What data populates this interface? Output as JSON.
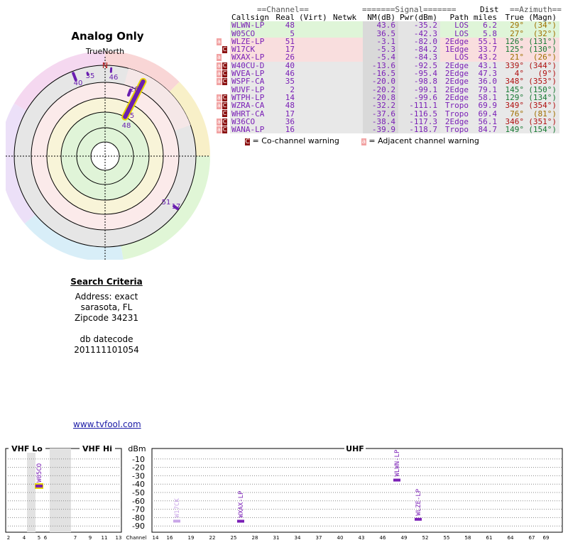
{
  "title": "Analog Only",
  "compass": {
    "true_north_label": "TrueNorth",
    "north_letter": "N",
    "labels": [
      "35",
      "46",
      "40",
      "26",
      "5",
      "48",
      "51",
      "17"
    ]
  },
  "table": {
    "group_headers": {
      "channel": "==Channel==",
      "signal": "=======Signal=======",
      "dist": "Dist",
      "azimuth": "==Azimuth=="
    },
    "headers": [
      "Callsign",
      "Real",
      "(Virt)",
      "Netwk",
      "NM(dB)",
      "Pwr(dBm)",
      "Path",
      "miles",
      "True",
      "(Magn)"
    ],
    "rows": [
      {
        "callsign": "WLWN-LP",
        "real": "48",
        "virt": "",
        "netwk": "",
        "nm": "43.6",
        "pwr": "-35.2",
        "path": "LOS",
        "dist": "6.2",
        "true": "29°",
        "magn": "(34°)",
        "bg": "#dff5d8",
        "warn": []
      },
      {
        "callsign": "W05CO",
        "real": "5",
        "virt": "",
        "netwk": "",
        "nm": "36.5",
        "pwr": "-42.3",
        "path": "LOS",
        "dist": "5.8",
        "true": "27°",
        "magn": "(32°)",
        "bg": "#dff5d8",
        "warn": []
      },
      {
        "callsign": "WLZE-LP",
        "real": "51",
        "virt": "",
        "netwk": "",
        "nm": "-3.1",
        "pwr": "-82.0",
        "path": "2Edge",
        "dist": "55.1",
        "true": "126°",
        "magn": "(131°)",
        "bg": "#f9dede",
        "warn": [
          "a"
        ]
      },
      {
        "callsign": "W17CK",
        "real": "17",
        "virt": "",
        "netwk": "",
        "nm": "-5.3",
        "pwr": "-84.2",
        "path": "1Edge",
        "dist": "33.7",
        "true": "125°",
        "magn": "(130°)",
        "bg": "#f9dede",
        "warn": [
          "C"
        ]
      },
      {
        "callsign": "WXAX-LP",
        "real": "26",
        "virt": "",
        "netwk": "",
        "nm": "-5.4",
        "pwr": "-84.3",
        "path": "LOS",
        "dist": "43.2",
        "true": "21°",
        "magn": "(26°)",
        "bg": "#f9dede",
        "warn": [
          "a"
        ]
      },
      {
        "callsign": "W40CU-D",
        "real": "40",
        "virt": "",
        "netwk": "",
        "nm": "-13.6",
        "pwr": "-92.5",
        "path": "2Edge",
        "dist": "43.1",
        "true": "339°",
        "magn": "(344°)",
        "bg": "#e8e8e8",
        "warn": [
          "a",
          "C"
        ]
      },
      {
        "callsign": "WVEA-LP",
        "real": "46",
        "virt": "",
        "netwk": "",
        "nm": "-16.5",
        "pwr": "-95.4",
        "path": "2Edge",
        "dist": "47.3",
        "true": "4°",
        "magn": "(9°)",
        "bg": "#e8e8e8",
        "warn": [
          "a",
          "C"
        ]
      },
      {
        "callsign": "WSPF-CA",
        "real": "35",
        "virt": "",
        "netwk": "",
        "nm": "-20.0",
        "pwr": "-98.8",
        "path": "2Edge",
        "dist": "36.0",
        "true": "348°",
        "magn": "(353°)",
        "bg": "#e8e8e8",
        "warn": [
          "a",
          "C"
        ]
      },
      {
        "callsign": "WUVF-LP",
        "real": "2",
        "virt": "",
        "netwk": "",
        "nm": "-20.2",
        "pwr": "-99.1",
        "path": "2Edge",
        "dist": "79.1",
        "true": "145°",
        "magn": "(150°)",
        "bg": "#e8e8e8",
        "warn": []
      },
      {
        "callsign": "WTPH-LP",
        "real": "14",
        "virt": "",
        "netwk": "",
        "nm": "-20.8",
        "pwr": "-99.6",
        "path": "2Edge",
        "dist": "58.1",
        "true": "129°",
        "magn": "(134°)",
        "bg": "#e8e8e8",
        "warn": [
          "a",
          "C"
        ]
      },
      {
        "callsign": "WZRA-CA",
        "real": "48",
        "virt": "",
        "netwk": "",
        "nm": "-32.2",
        "pwr": "-111.1",
        "path": "Tropo",
        "dist": "69.9",
        "true": "349°",
        "magn": "(354°)",
        "bg": "#e8e8e8",
        "warn": [
          "a",
          "C"
        ]
      },
      {
        "callsign": "WHRT-CA",
        "real": "17",
        "virt": "",
        "netwk": "",
        "nm": "-37.6",
        "pwr": "-116.5",
        "path": "Tropo",
        "dist": "69.4",
        "true": "76°",
        "magn": "(81°)",
        "bg": "#e8e8e8",
        "warn": [
          "C"
        ]
      },
      {
        "callsign": "W36CO",
        "real": "36",
        "virt": "",
        "netwk": "",
        "nm": "-38.4",
        "pwr": "-117.3",
        "path": "2Edge",
        "dist": "56.1",
        "true": "346°",
        "magn": "(351°)",
        "bg": "#e8e8e8",
        "warn": [
          "a",
          "C"
        ]
      },
      {
        "callsign": "WANA-LP",
        "real": "16",
        "virt": "",
        "netwk": "",
        "nm": "-39.9",
        "pwr": "-118.7",
        "path": "Tropo",
        "dist": "84.7",
        "true": "149°",
        "magn": "(154°)",
        "bg": "#e8e8e8",
        "warn": [
          "a",
          "C"
        ]
      }
    ]
  },
  "legend": {
    "co_channel": "= Co-channel warning",
    "adjacent": "= Adjacent channel warning",
    "co_symbol": "C",
    "adj_symbol": "a"
  },
  "criteria": {
    "heading": "Search Criteria",
    "address_line1": "Address: exact",
    "address_line2": "sarasota, FL",
    "address_line3": "Zipcode 34231",
    "db_label": "db datecode",
    "db_value": "201111101054"
  },
  "site_link": "www.tvfool.com",
  "spectrum": {
    "vhf_lo": "VHF Lo",
    "vhf_hi": "VHF Hi",
    "uhf": "UHF",
    "dbm_label": "dBm",
    "channel_label": "Channel",
    "y_ticks": [
      "-10",
      "-20",
      "-30",
      "-40",
      "-50",
      "-60",
      "-70",
      "-80",
      "-90"
    ],
    "vhf_lo_ticks": [
      "2",
      "4",
      "5",
      "6"
    ],
    "vhf_hi_ticks": [
      "7",
      "9",
      "11",
      "13"
    ],
    "uhf_ticks": [
      "14",
      "16",
      "19",
      "22",
      "25",
      "28",
      "31",
      "34",
      "37",
      "40",
      "43",
      "46",
      "49",
      "52",
      "55",
      "58",
      "61",
      "64",
      "67",
      "69"
    ],
    "stations": [
      {
        "label": "W05CO",
        "band": "lo",
        "channel": 5,
        "dbm": -42.3,
        "color": "#7a1fb6"
      },
      {
        "label": "WLWN-LP",
        "band": "uhf",
        "channel": 48,
        "dbm": -35.2,
        "color": "#7a1fb6"
      },
      {
        "label": "WXAX-LP",
        "band": "uhf",
        "channel": 26,
        "dbm": -84.3,
        "color": "#7a1fb6"
      },
      {
        "label": "WLZE-LP",
        "band": "uhf",
        "channel": 51,
        "dbm": -82.0,
        "color": "#7a1fb6"
      },
      {
        "label": "W17CK",
        "band": "uhf",
        "channel": 17,
        "dbm": -84.2,
        "color": "#c9a6e8"
      }
    ]
  },
  "colors": {
    "accent": "#7a1fb6",
    "warn_red": "#8b1111",
    "link": "#1a1aa6"
  }
}
